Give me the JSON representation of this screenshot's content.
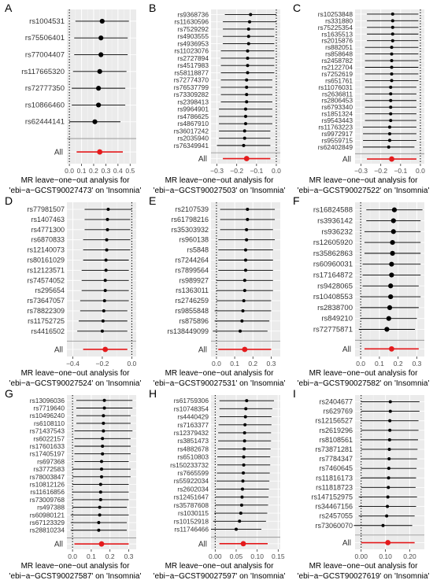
{
  "chart_data": [
    {
      "type": "scatter",
      "panel_label": "A",
      "title": "",
      "xlabel": "MR leave−one−out analysis for\n'ebi−a−GCST90027473' on 'Insomnia'",
      "ylabel": "",
      "xlim": [
        -0.02,
        0.55
      ],
      "xticks": [
        0.0,
        0.1,
        0.2,
        0.3,
        0.4,
        0.5
      ],
      "xtick_labels": [
        "0.0",
        "0.1",
        "0.2",
        "0.3",
        "0.4",
        "0.5"
      ],
      "grid": true,
      "snps": [
        "rs1004531",
        "rs75506401",
        "rs77004407",
        "rs117665320",
        "rs72777350",
        "rs10866460",
        "rs62444141"
      ],
      "estimates": [
        0.27,
        0.26,
        0.26,
        0.25,
        0.24,
        0.24,
        0.21
      ],
      "ci_low": [
        0.05,
        0.04,
        0.04,
        0.03,
        0.02,
        0.02,
        0.0
      ],
      "ci_high": [
        0.49,
        0.48,
        0.48,
        0.47,
        0.46,
        0.46,
        0.42
      ],
      "all": {
        "label": "All",
        "estimate": 0.25,
        "ci_low": 0.06,
        "ci_high": 0.44
      }
    },
    {
      "type": "scatter",
      "panel_label": "B",
      "title": "",
      "xlabel": "MR leave−one−out analysis for\n'ebi−a−GCST90027503' on 'Insomnia'",
      "ylabel": "",
      "xlim": [
        -0.33,
        0.02
      ],
      "xticks": [
        -0.3,
        -0.2,
        -0.1,
        0.0
      ],
      "xtick_labels": [
        "−0.3",
        "−0.2",
        "−0.1",
        "0.0"
      ],
      "grid": true,
      "snps": [
        "rs9368736",
        "rs11630596",
        "rs7529292",
        "rs4903555",
        "rs4936953",
        "rs11023076",
        "rs2727894",
        "rs4517983",
        "rs58118877",
        "rs72774370",
        "rs76537799",
        "rs73309282",
        "rs2398413",
        "rs9964901",
        "rs4786625",
        "rs4867910",
        "rs36017242",
        "rs2035940",
        "rs76349941"
      ],
      "estimates": [
        -0.13,
        -0.135,
        -0.14,
        -0.14,
        -0.14,
        -0.145,
        -0.145,
        -0.145,
        -0.145,
        -0.15,
        -0.15,
        -0.15,
        -0.15,
        -0.155,
        -0.155,
        -0.155,
        -0.16,
        -0.16,
        -0.165
      ],
      "ci_low": [
        -0.26,
        -0.27,
        -0.27,
        -0.27,
        -0.27,
        -0.28,
        -0.28,
        -0.28,
        -0.28,
        -0.28,
        -0.28,
        -0.28,
        -0.28,
        -0.29,
        -0.29,
        -0.29,
        -0.29,
        -0.29,
        -0.3
      ],
      "ci_high": [
        -0.0,
        -0.0,
        -0.01,
        -0.01,
        -0.01,
        -0.01,
        -0.01,
        -0.01,
        -0.01,
        -0.02,
        -0.02,
        -0.02,
        -0.02,
        -0.02,
        -0.02,
        -0.02,
        -0.03,
        -0.03,
        -0.03
      ],
      "all": {
        "label": "All",
        "estimate": -0.15,
        "ci_low": -0.27,
        "ci_high": -0.03
      }
    },
    {
      "type": "scatter",
      "panel_label": "C",
      "title": "",
      "xlabel": "MR leave−one−out analysis for\n'ebi−a−GCST90027522' on 'Insomnia'",
      "ylabel": "",
      "xlim": [
        -0.33,
        0.02
      ],
      "xticks": [
        -0.3,
        -0.2,
        -0.1,
        0.0
      ],
      "xtick_labels": [
        "−0.3",
        "−0.2",
        "−0.1",
        "0.0"
      ],
      "grid": true,
      "snps": [
        "rs10253848",
        "rs331880",
        "rs75225354",
        "rs1635513",
        "rs2015876",
        "rs882051",
        "rs858648",
        "rs2458782",
        "rs2122704",
        "rs7252619",
        "rs651761",
        "rs11076031",
        "rs2636811",
        "rs2806453",
        "rs6793340",
        "rs1851324",
        "rs9543443",
        "rs11763223",
        "rs9972917",
        "rs9559715",
        "rs62402849"
      ],
      "estimates": [
        -0.14,
        -0.14,
        -0.14,
        -0.14,
        -0.14,
        -0.145,
        -0.145,
        -0.145,
        -0.145,
        -0.145,
        -0.145,
        -0.15,
        -0.15,
        -0.15,
        -0.15,
        -0.15,
        -0.15,
        -0.155,
        -0.155,
        -0.155,
        -0.16
      ],
      "ci_low": [
        -0.27,
        -0.27,
        -0.27,
        -0.27,
        -0.27,
        -0.28,
        -0.28,
        -0.28,
        -0.28,
        -0.28,
        -0.28,
        -0.28,
        -0.28,
        -0.28,
        -0.28,
        -0.28,
        -0.28,
        -0.29,
        -0.29,
        -0.29,
        -0.29
      ],
      "ci_high": [
        -0.01,
        -0.01,
        -0.01,
        -0.01,
        -0.01,
        -0.01,
        -0.01,
        -0.01,
        -0.01,
        -0.01,
        -0.01,
        -0.02,
        -0.02,
        -0.02,
        -0.02,
        -0.02,
        -0.02,
        -0.02,
        -0.02,
        -0.02,
        -0.03
      ],
      "all": {
        "label": "All",
        "estimate": -0.145,
        "ci_low": -0.27,
        "ci_high": -0.02
      }
    },
    {
      "type": "scatter",
      "panel_label": "D",
      "title": "",
      "xlabel": "MR leave−one−out analysis for\n'ebi−a−GCST90027524' on 'Insomnia'",
      "ylabel": "",
      "xlim": [
        -0.44,
        0.03
      ],
      "xticks": [
        -0.4,
        -0.2,
        0.0
      ],
      "xtick_labels": [
        "−0.4",
        "−0.2",
        "0.0"
      ],
      "grid": true,
      "snps": [
        "rs77981507",
        "rs1407463",
        "rs4771300",
        "rs6870833",
        "rs12140073",
        "rs80161029",
        "rs12123571",
        "rs74574052",
        "rs295654",
        "rs73647057",
        "rs78822309",
        "rs11752725",
        "rs4416502"
      ],
      "estimates": [
        -0.16,
        -0.165,
        -0.165,
        -0.17,
        -0.17,
        -0.175,
        -0.175,
        -0.18,
        -0.18,
        -0.185,
        -0.19,
        -0.195,
        -0.2
      ],
      "ci_low": [
        -0.32,
        -0.32,
        -0.32,
        -0.33,
        -0.33,
        -0.33,
        -0.34,
        -0.34,
        -0.34,
        -0.35,
        -0.35,
        -0.36,
        -0.37
      ],
      "ci_high": [
        -0.0,
        -0.01,
        -0.01,
        -0.01,
        -0.01,
        -0.02,
        -0.02,
        -0.02,
        -0.02,
        -0.02,
        -0.03,
        -0.03,
        -0.03
      ],
      "all": {
        "label": "All",
        "estimate": -0.18,
        "ci_low": -0.33,
        "ci_high": -0.03
      }
    },
    {
      "type": "scatter",
      "panel_label": "E",
      "title": "",
      "xlabel": "MR leave−one−out analysis for\n'ebi−a−GCST90027531' on 'Insomnia'",
      "ylabel": "",
      "xlim": [
        -0.03,
        0.35
      ],
      "xticks": [
        0.0,
        0.1,
        0.2,
        0.3
      ],
      "xtick_labels": [
        "0.0",
        "0.1",
        "0.2",
        "0.3"
      ],
      "grid": true,
      "snps": [
        "rs2107539",
        "rs61798216",
        "rs35303932",
        "rs960138",
        "rs5848",
        "rs7244264",
        "rs7899564",
        "rs989927",
        "rs1363011",
        "rs2746259",
        "rs9855848",
        "rs875896",
        "rs138449099"
      ],
      "estimates": [
        0.17,
        0.17,
        0.165,
        0.165,
        0.16,
        0.16,
        0.16,
        0.155,
        0.155,
        0.15,
        0.145,
        0.14,
        0.13
      ],
      "ci_low": [
        0.02,
        0.02,
        0.02,
        0.01,
        0.01,
        0.01,
        0.01,
        0.0,
        0.0,
        -0.0,
        -0.01,
        -0.01,
        -0.02
      ],
      "ci_high": [
        0.32,
        0.32,
        0.31,
        0.32,
        0.31,
        0.31,
        0.31,
        0.31,
        0.31,
        0.3,
        0.3,
        0.29,
        0.28
      ],
      "all": {
        "label": "All",
        "estimate": 0.155,
        "ci_low": 0.01,
        "ci_high": 0.3
      }
    },
    {
      "type": "scatter",
      "panel_label": "F",
      "title": "",
      "xlabel": "MR leave−one−out analysis for\n'ebi−a−GCST90027582' on 'Insomnia'",
      "ylabel": "",
      "xlim": [
        -0.03,
        0.34
      ],
      "xticks": [
        0.0,
        0.1,
        0.2,
        0.3
      ],
      "xtick_labels": [
        "0.0",
        "0.1",
        "0.2",
        "0.3"
      ],
      "grid": true,
      "snps": [
        "rs16824588",
        "rs3936142",
        "rs936232",
        "rs12605920",
        "rs35862863",
        "rs60960031",
        "rs17164872",
        "rs9428065",
        "rs10408553",
        "rs2838700",
        "rs849210",
        "rs72775871"
      ],
      "estimates": [
        0.18,
        0.175,
        0.175,
        0.17,
        0.17,
        0.165,
        0.165,
        0.16,
        0.16,
        0.155,
        0.15,
        0.14
      ],
      "ci_low": [
        0.03,
        0.03,
        0.02,
        0.02,
        0.02,
        0.01,
        0.01,
        0.01,
        0.0,
        0.0,
        -0.0,
        -0.01
      ],
      "ci_high": [
        0.33,
        0.32,
        0.32,
        0.32,
        0.32,
        0.32,
        0.32,
        0.31,
        0.32,
        0.31,
        0.3,
        0.29
      ],
      "all": {
        "label": "All",
        "estimate": 0.165,
        "ci_low": 0.02,
        "ci_high": 0.31
      }
    },
    {
      "type": "scatter",
      "panel_label": "G",
      "title": "",
      "xlabel": "MR leave−one−out analysis for\n'ebi−a−GCST90027587' on 'Insomnia'",
      "ylabel": "",
      "xlim": [
        -0.03,
        0.34
      ],
      "xticks": [
        0.0,
        0.1,
        0.2,
        0.3
      ],
      "xtick_labels": [
        "0.0",
        "0.1",
        "0.2",
        "0.3"
      ],
      "grid": true,
      "snps": [
        "rs13096036",
        "rs7719640",
        "rs10496240",
        "rs6108110",
        "rs71437543",
        "rs6022157",
        "rs17601633",
        "rs17405197",
        "rs697368",
        "rs3772583",
        "rs78003847",
        "rs10812126",
        "rs11616856",
        "rs73009768",
        "rs497388",
        "rs60980121",
        "rs67123329",
        "rs28810234"
      ],
      "estimates": [
        0.17,
        0.17,
        0.165,
        0.165,
        0.165,
        0.16,
        0.16,
        0.16,
        0.155,
        0.155,
        0.155,
        0.15,
        0.15,
        0.15,
        0.145,
        0.145,
        0.14,
        0.14
      ],
      "ci_low": [
        0.02,
        0.02,
        0.02,
        0.02,
        0.01,
        0.01,
        0.01,
        0.01,
        0.01,
        0.0,
        0.0,
        0.0,
        0.0,
        -0.0,
        -0.0,
        -0.01,
        -0.01,
        -0.01
      ],
      "ci_high": [
        0.32,
        0.32,
        0.31,
        0.31,
        0.32,
        0.31,
        0.31,
        0.31,
        0.3,
        0.31,
        0.31,
        0.3,
        0.3,
        0.3,
        0.29,
        0.3,
        0.29,
        0.29
      ],
      "all": {
        "label": "All",
        "estimate": 0.155,
        "ci_low": 0.01,
        "ci_high": 0.3
      }
    },
    {
      "type": "scatter",
      "panel_label": "H",
      "title": "",
      "xlabel": "MR leave−one−out analysis for\n'ebi−a−GCST90027597' on 'Insomnia'",
      "ylabel": "",
      "xlim": [
        -0.01,
        0.155
      ],
      "xticks": [
        0.0,
        0.05,
        0.1,
        0.15
      ],
      "xtick_labels": [
        "0.00",
        "0.05",
        "0.10",
        "0.15"
      ],
      "grid": true,
      "snps": [
        "rs61759306",
        "rs10748354",
        "rs4440429",
        "rs7163377",
        "rs12379432",
        "rs3851473",
        "rs4882678",
        "rs6510803",
        "rs150233732",
        "rs7665599",
        "rs55922034",
        "rs2602034",
        "rs12451647",
        "rs35787608",
        "rs1030115",
        "rs10152918",
        "rs11746466"
      ],
      "estimates": [
        0.075,
        0.073,
        0.072,
        0.071,
        0.07,
        0.07,
        0.069,
        0.068,
        0.068,
        0.067,
        0.066,
        0.065,
        0.064,
        0.063,
        0.061,
        0.058,
        0.05
      ],
      "ci_low": [
        0.01,
        0.01,
        0.01,
        0.008,
        0.007,
        0.007,
        0.006,
        0.005,
        0.005,
        0.004,
        0.003,
        0.002,
        0.001,
        0.0,
        -0.002,
        -0.005,
        -0.01
      ],
      "ci_high": [
        0.14,
        0.136,
        0.134,
        0.134,
        0.133,
        0.133,
        0.132,
        0.131,
        0.131,
        0.13,
        0.129,
        0.128,
        0.127,
        0.126,
        0.124,
        0.121,
        0.11
      ],
      "all": {
        "label": "All",
        "estimate": 0.067,
        "ci_low": 0.01,
        "ci_high": 0.125
      }
    },
    {
      "type": "scatter",
      "panel_label": "I",
      "title": "",
      "xlabel": "MR leave−one−out analysis for\n'ebi−a−GCST90027619' on 'Insomnia'",
      "ylabel": "",
      "xlim": [
        -0.025,
        0.26
      ],
      "xticks": [
        0.0,
        0.1,
        0.2
      ],
      "xtick_labels": [
        "0.00",
        "0.10",
        "0.20"
      ],
      "grid": true,
      "snps": [
        "rs2404677",
        "rs629769",
        "rs12156527",
        "rs2619296",
        "rs8108561",
        "rs73871281",
        "rs7784347",
        "rs7460645",
        "rs11816173",
        "rs11818723",
        "rs147152975",
        "rs34467156",
        "rs2457055",
        "rs73060070"
      ],
      "estimates": [
        0.12,
        0.12,
        0.118,
        0.118,
        0.117,
        0.116,
        0.115,
        0.114,
        0.113,
        0.112,
        0.11,
        0.108,
        0.105,
        0.09
      ],
      "ci_low": [
        0.0,
        0.0,
        -0.0,
        -0.0,
        -0.0,
        -0.0,
        -0.0,
        -0.0,
        -0.0,
        -0.0,
        -0.01,
        -0.01,
        -0.01,
        -0.03
      ],
      "ci_high": [
        0.24,
        0.24,
        0.236,
        0.236,
        0.234,
        0.232,
        0.23,
        0.228,
        0.226,
        0.224,
        0.23,
        0.226,
        0.22,
        0.21
      ],
      "all": {
        "label": "All",
        "estimate": 0.11,
        "ci_low": 0.0,
        "ci_high": 0.22
      }
    }
  ],
  "colors": {
    "panel_bg": "#ebebeb",
    "grid_major": "#ffffff",
    "grid_minor": "#f4f4f4",
    "point": "#000000",
    "line": "#000000",
    "overall": "#e41a1c",
    "text": "#333333",
    "axis_text": "#4d4d4d"
  }
}
